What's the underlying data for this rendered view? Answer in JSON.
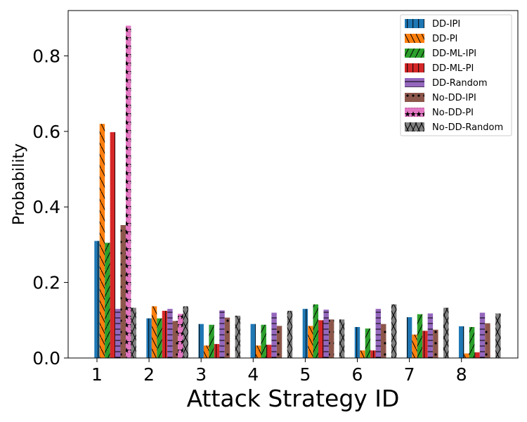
{
  "chart_data": {
    "type": "bar",
    "title": "",
    "xlabel": "Attack Strategy ID",
    "ylabel": "Probability",
    "categories": [
      "1",
      "2",
      "3",
      "4",
      "5",
      "6",
      "7",
      "8"
    ],
    "ylim": [
      0,
      0.92
    ],
    "yticks": [
      "0.0",
      "0.2",
      "0.4",
      "0.6",
      "0.8"
    ],
    "grid": false,
    "legend_position": "top-right",
    "series": [
      {
        "name": "DD-IPI",
        "color": "#1f77b4",
        "hatch": "vertical",
        "values": [
          0.31,
          0.105,
          0.09,
          0.09,
          0.13,
          0.082,
          0.108,
          0.084
        ]
      },
      {
        "name": "DD-PI",
        "color": "#ff7f0e",
        "hatch": "backslash",
        "values": [
          0.62,
          0.137,
          0.033,
          0.033,
          0.085,
          0.02,
          0.062,
          0.012
        ]
      },
      {
        "name": "DD-ML-IPI",
        "color": "#2ca02c",
        "hatch": "slash",
        "values": [
          0.305,
          0.105,
          0.088,
          0.088,
          0.142,
          0.078,
          0.116,
          0.082
        ]
      },
      {
        "name": "DD-ML-PI",
        "color": "#d62728",
        "hatch": "vertical",
        "values": [
          0.598,
          0.125,
          0.037,
          0.035,
          0.1,
          0.02,
          0.072,
          0.015
        ]
      },
      {
        "name": "DD-Random",
        "color": "#9467bd",
        "hatch": "horizontal",
        "values": [
          0.13,
          0.13,
          0.126,
          0.12,
          0.128,
          0.13,
          0.118,
          0.12
        ]
      },
      {
        "name": "No-DD-IPI",
        "color": "#8c564b",
        "hatch": "dots",
        "values": [
          0.352,
          0.098,
          0.107,
          0.085,
          0.102,
          0.09,
          0.075,
          0.092
        ]
      },
      {
        "name": "No-DD-PI",
        "color": "#e377c2",
        "hatch": "stars",
        "values": [
          0.88,
          0.117,
          0.0,
          0.0,
          0.0,
          0.0,
          0.0,
          0.0
        ]
      },
      {
        "name": "No-DD-Random",
        "color": "#7f7f7f",
        "hatch": "cross",
        "values": [
          0.133,
          0.137,
          0.112,
          0.125,
          0.102,
          0.142,
          0.133,
          0.118
        ]
      }
    ]
  }
}
